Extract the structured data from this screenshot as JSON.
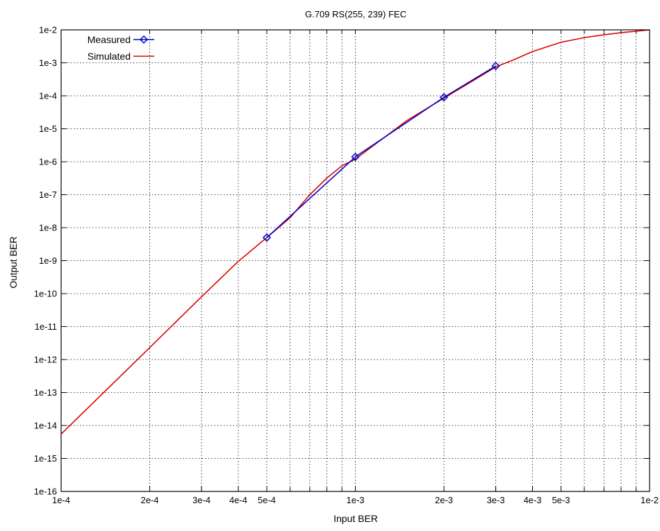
{
  "chart_data": {
    "type": "line",
    "title": "G.709 RS(255, 239) FEC",
    "xlabel": "Input BER",
    "ylabel": "Output BER",
    "x_scale": "log",
    "y_scale": "log",
    "xlim": [
      0.0001,
      0.01
    ],
    "ylim": [
      1e-16,
      0.01
    ],
    "grid": true,
    "legend_position": "top-left",
    "x_ticks": [
      {
        "value": 0.0001,
        "label": "1e-4"
      },
      {
        "value": 0.0002,
        "label": "2e-4"
      },
      {
        "value": 0.0003,
        "label": "3e-4"
      },
      {
        "value": 0.0004,
        "label": "4e-4"
      },
      {
        "value": 0.0005,
        "label": "5e-4"
      },
      {
        "value": 0.001,
        "label": "1e-3"
      },
      {
        "value": 0.002,
        "label": "2e-3"
      },
      {
        "value": 0.003,
        "label": "3e-3"
      },
      {
        "value": 0.004,
        "label": "4e-3"
      },
      {
        "value": 0.005,
        "label": "5e-3"
      },
      {
        "value": 0.01,
        "label": "1e-2"
      }
    ],
    "y_ticks": [
      {
        "value": 1e-16,
        "label": "1e-16"
      },
      {
        "value": 1e-15,
        "label": "1e-15"
      },
      {
        "value": 1e-14,
        "label": "1e-14"
      },
      {
        "value": 1e-13,
        "label": "1e-13"
      },
      {
        "value": 1e-12,
        "label": "1e-12"
      },
      {
        "value": 1e-11,
        "label": "1e-11"
      },
      {
        "value": 1e-10,
        "label": "1e-10"
      },
      {
        "value": 1e-09,
        "label": "1e-9"
      },
      {
        "value": 1e-08,
        "label": "1e-8"
      },
      {
        "value": 1e-07,
        "label": "1e-7"
      },
      {
        "value": 1e-06,
        "label": "1e-6"
      },
      {
        "value": 1e-05,
        "label": "1e-5"
      },
      {
        "value": 0.0001,
        "label": "1e-4"
      },
      {
        "value": 0.001,
        "label": "1e-3"
      },
      {
        "value": 0.01,
        "label": "1e-2"
      }
    ],
    "series": [
      {
        "name": "Measured",
        "color": "#0000cc",
        "marker": "diamond",
        "x": [
          0.0005,
          0.001,
          0.002,
          0.003
        ],
        "y": [
          5e-09,
          1.4e-06,
          9e-05,
          0.0008
        ]
      },
      {
        "name": "Simulated",
        "color": "#dd0000",
        "marker": "none",
        "x": [
          0.0001,
          0.0002,
          0.0003,
          0.0004,
          0.0005,
          0.0006,
          0.0007,
          0.0008,
          0.0009,
          0.001,
          0.0015,
          0.002,
          0.0025,
          0.003,
          0.0035,
          0.004,
          0.005,
          0.006,
          0.007,
          0.008,
          0.009,
          0.01
        ],
        "y": [
          5.5e-15,
          2.3e-12,
          8e-11,
          9.5e-10,
          5e-09,
          2e-08,
          1e-07,
          3.2e-07,
          7.5e-07,
          1.2e-06,
          1.8e-05,
          8.5e-05,
          0.00028,
          0.00075,
          0.0013,
          0.0022,
          0.0042,
          0.0058,
          0.0071,
          0.0082,
          0.0091,
          0.01
        ]
      }
    ]
  }
}
